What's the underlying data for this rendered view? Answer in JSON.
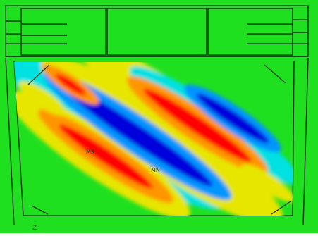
{
  "colors": {
    "background": "#1fe01f",
    "outline": "#0a3a0a",
    "contour": [
      "#0000dc",
      "#0096ff",
      "#00e1e1",
      "#1fe01f",
      "#e6e600",
      "#ff9600",
      "#ff0000"
    ]
  },
  "labels": {
    "max_marker": "MX",
    "min_marker": "MN",
    "axis_marker": "Z"
  }
}
